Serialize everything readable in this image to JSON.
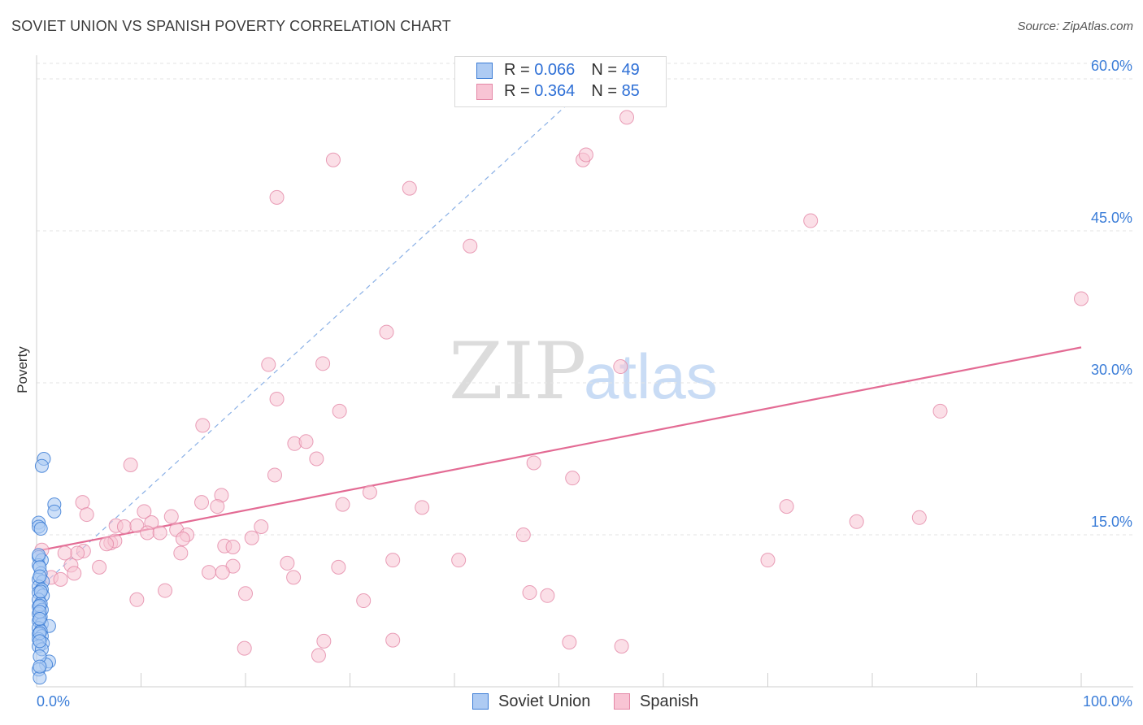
{
  "header": {
    "title": "SOVIET UNION VS SPANISH POVERTY CORRELATION CHART",
    "source": "Source: ZipAtlas.com"
  },
  "watermark": {
    "zip": "ZIP",
    "atlas": "atlas"
  },
  "legend": {
    "items": [
      {
        "r_label": "R = ",
        "r_value": "0.066",
        "n_label": "N = ",
        "n_value": "49"
      },
      {
        "r_label": "R = ",
        "r_value": "0.364",
        "n_label": "N = ",
        "n_value": "85"
      }
    ]
  },
  "colors": {
    "soviet_fill": "#aecbf3",
    "soviet_stroke": "#3a7bd5",
    "spanish_fill": "#f8c4d4",
    "spanish_stroke": "#e487a6",
    "spanish_line": "#e36b94",
    "soviet_line": "#8ab0e6",
    "tick_label": "#3b7dd8",
    "grid": "#e3e3e3"
  },
  "chart_data": {
    "type": "scatter",
    "title": "SOVIET UNION VS SPANISH POVERTY CORRELATION CHART",
    "xlabel": "",
    "ylabel": "Poverty",
    "xlim": [
      0,
      100
    ],
    "ylim": [
      0,
      65
    ],
    "x_tick_labels": [
      "0.0%",
      "100.0%"
    ],
    "y_ticks": [
      15,
      30,
      45,
      60
    ],
    "y_tick_labels": [
      "15.0%",
      "30.0%",
      "45.0%",
      "60.0%"
    ],
    "grid": true,
    "legend_position": "top-center",
    "series": [
      {
        "name": "Soviet Union",
        "r": 0.066,
        "n": 49,
        "trend": {
          "x0": 0,
          "y0": 9.5,
          "x1": 52,
          "y1": 58.6,
          "style": "dashed"
        },
        "points": [
          [
            0.7,
            22.5
          ],
          [
            0.5,
            21.8
          ],
          [
            1.7,
            18.0
          ],
          [
            1.7,
            17.3
          ],
          [
            0.2,
            16.2
          ],
          [
            0.2,
            15.8
          ],
          [
            0.4,
            15.6
          ],
          [
            0.2,
            12.8
          ],
          [
            0.5,
            12.5
          ],
          [
            0.2,
            12.0
          ],
          [
            0.4,
            11.2
          ],
          [
            0.2,
            10.6
          ],
          [
            0.6,
            10.4
          ],
          [
            0.2,
            9.9
          ],
          [
            0.5,
            9.6
          ],
          [
            0.2,
            9.3
          ],
          [
            0.6,
            9.0
          ],
          [
            0.2,
            8.6
          ],
          [
            0.4,
            8.2
          ],
          [
            0.2,
            7.9
          ],
          [
            0.5,
            7.6
          ],
          [
            0.2,
            7.2
          ],
          [
            0.4,
            6.9
          ],
          [
            0.2,
            6.5
          ],
          [
            0.5,
            6.2
          ],
          [
            1.2,
            6.0
          ],
          [
            0.2,
            5.8
          ],
          [
            0.4,
            5.5
          ],
          [
            0.2,
            5.2
          ],
          [
            0.5,
            5.0
          ],
          [
            0.2,
            4.7
          ],
          [
            0.6,
            4.3
          ],
          [
            0.2,
            4.0
          ],
          [
            0.5,
            3.7
          ],
          [
            1.2,
            2.5
          ],
          [
            0.9,
            2.2
          ],
          [
            0.2,
            1.7
          ],
          [
            0.3,
            0.9
          ],
          [
            0.2,
            13.0
          ],
          [
            0.3,
            11.8
          ],
          [
            0.3,
            10.9
          ],
          [
            0.4,
            9.4
          ],
          [
            0.3,
            8.0
          ],
          [
            0.3,
            7.4
          ],
          [
            0.3,
            6.7
          ],
          [
            0.3,
            5.3
          ],
          [
            0.3,
            4.5
          ],
          [
            0.3,
            3.0
          ],
          [
            0.3,
            2.0
          ]
        ]
      },
      {
        "name": "Spanish",
        "r": 0.364,
        "n": 85,
        "trend": {
          "x0": 0,
          "y0": 13.4,
          "x1": 100,
          "y1": 33.5,
          "style": "solid"
        },
        "points": [
          [
            56.5,
            56.2
          ],
          [
            52.3,
            52.0
          ],
          [
            52.6,
            52.5
          ],
          [
            28.4,
            52.0
          ],
          [
            35.7,
            49.2
          ],
          [
            23.0,
            48.3
          ],
          [
            74.1,
            46.0
          ],
          [
            41.5,
            43.5
          ],
          [
            100.0,
            38.3
          ],
          [
            33.5,
            35.0
          ],
          [
            27.4,
            31.9
          ],
          [
            55.9,
            31.6
          ],
          [
            22.2,
            31.8
          ],
          [
            23.0,
            28.4
          ],
          [
            29.0,
            27.2
          ],
          [
            86.5,
            27.2
          ],
          [
            15.9,
            25.8
          ],
          [
            24.7,
            24.0
          ],
          [
            25.8,
            24.2
          ],
          [
            26.8,
            22.5
          ],
          [
            9.0,
            21.9
          ],
          [
            47.6,
            22.1
          ],
          [
            22.8,
            20.9
          ],
          [
            51.3,
            20.6
          ],
          [
            4.4,
            18.2
          ],
          [
            17.7,
            18.9
          ],
          [
            31.9,
            19.2
          ],
          [
            15.8,
            18.2
          ],
          [
            17.3,
            17.8
          ],
          [
            29.3,
            18.0
          ],
          [
            36.9,
            17.7
          ],
          [
            71.8,
            17.8
          ],
          [
            4.8,
            17.0
          ],
          [
            10.3,
            17.3
          ],
          [
            12.9,
            16.8
          ],
          [
            7.6,
            15.9
          ],
          [
            8.4,
            15.8
          ],
          [
            9.6,
            15.9
          ],
          [
            11.0,
            16.2
          ],
          [
            21.5,
            15.8
          ],
          [
            78.5,
            16.3
          ],
          [
            84.5,
            16.7
          ],
          [
            10.6,
            15.2
          ],
          [
            11.8,
            15.2
          ],
          [
            13.4,
            15.5
          ],
          [
            14.4,
            15.0
          ],
          [
            14.0,
            14.6
          ],
          [
            20.6,
            14.7
          ],
          [
            7.1,
            14.2
          ],
          [
            7.5,
            14.4
          ],
          [
            6.7,
            14.1
          ],
          [
            46.6,
            15.0
          ],
          [
            4.5,
            13.4
          ],
          [
            3.9,
            13.2
          ],
          [
            2.7,
            13.2
          ],
          [
            13.8,
            13.2
          ],
          [
            18.0,
            13.9
          ],
          [
            18.8,
            13.8
          ],
          [
            3.3,
            12.0
          ],
          [
            24.0,
            12.2
          ],
          [
            34.1,
            12.5
          ],
          [
            40.4,
            12.5
          ],
          [
            70.0,
            12.5
          ],
          [
            6.0,
            11.8
          ],
          [
            18.8,
            11.9
          ],
          [
            28.9,
            11.8
          ],
          [
            16.5,
            11.3
          ],
          [
            17.8,
            11.3
          ],
          [
            3.6,
            11.2
          ],
          [
            1.4,
            10.8
          ],
          [
            2.3,
            10.6
          ],
          [
            24.6,
            10.8
          ],
          [
            12.3,
            9.5
          ],
          [
            20.0,
            9.2
          ],
          [
            47.2,
            9.3
          ],
          [
            48.9,
            9.0
          ],
          [
            9.6,
            8.6
          ],
          [
            31.3,
            8.5
          ],
          [
            27.5,
            4.5
          ],
          [
            34.1,
            4.6
          ],
          [
            51.0,
            4.4
          ],
          [
            56.0,
            4.0
          ],
          [
            19.9,
            3.8
          ],
          [
            27.0,
            3.1
          ],
          [
            0.5,
            13.5
          ]
        ]
      }
    ]
  }
}
